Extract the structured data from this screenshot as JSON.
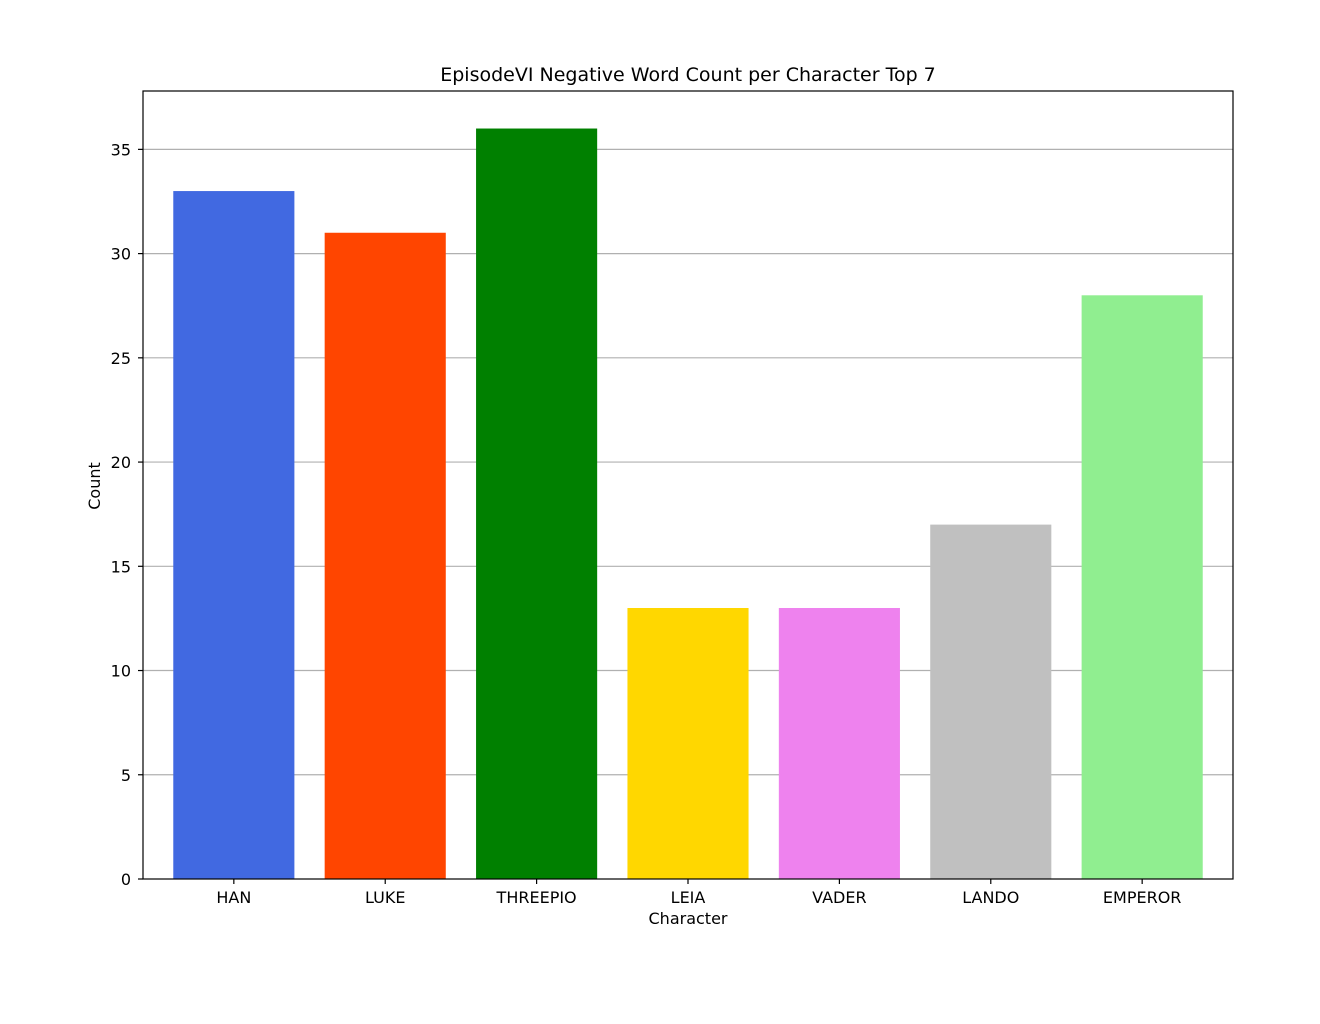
{
  "chart_data": {
    "type": "bar",
    "title": "EpisodeVI Negative Word Count per Character Top 7",
    "xlabel": "Character",
    "ylabel": "Count",
    "categories": [
      "HAN",
      "LUKE",
      "THREEPIO",
      "LEIA",
      "VADER",
      "LANDO",
      "EMPEROR"
    ],
    "values": [
      33,
      31,
      36,
      13,
      13,
      17,
      28
    ],
    "colors": [
      "#4169e1",
      "#ff4500",
      "#008000",
      "#ffd700",
      "#ee82ee",
      "#c0c0c0",
      "#90ee90"
    ],
    "ylim": [
      0,
      37.8
    ],
    "yticks": [
      0,
      5,
      10,
      15,
      20,
      25,
      30,
      35
    ],
    "grid": "y-axis major",
    "legend": "none"
  }
}
